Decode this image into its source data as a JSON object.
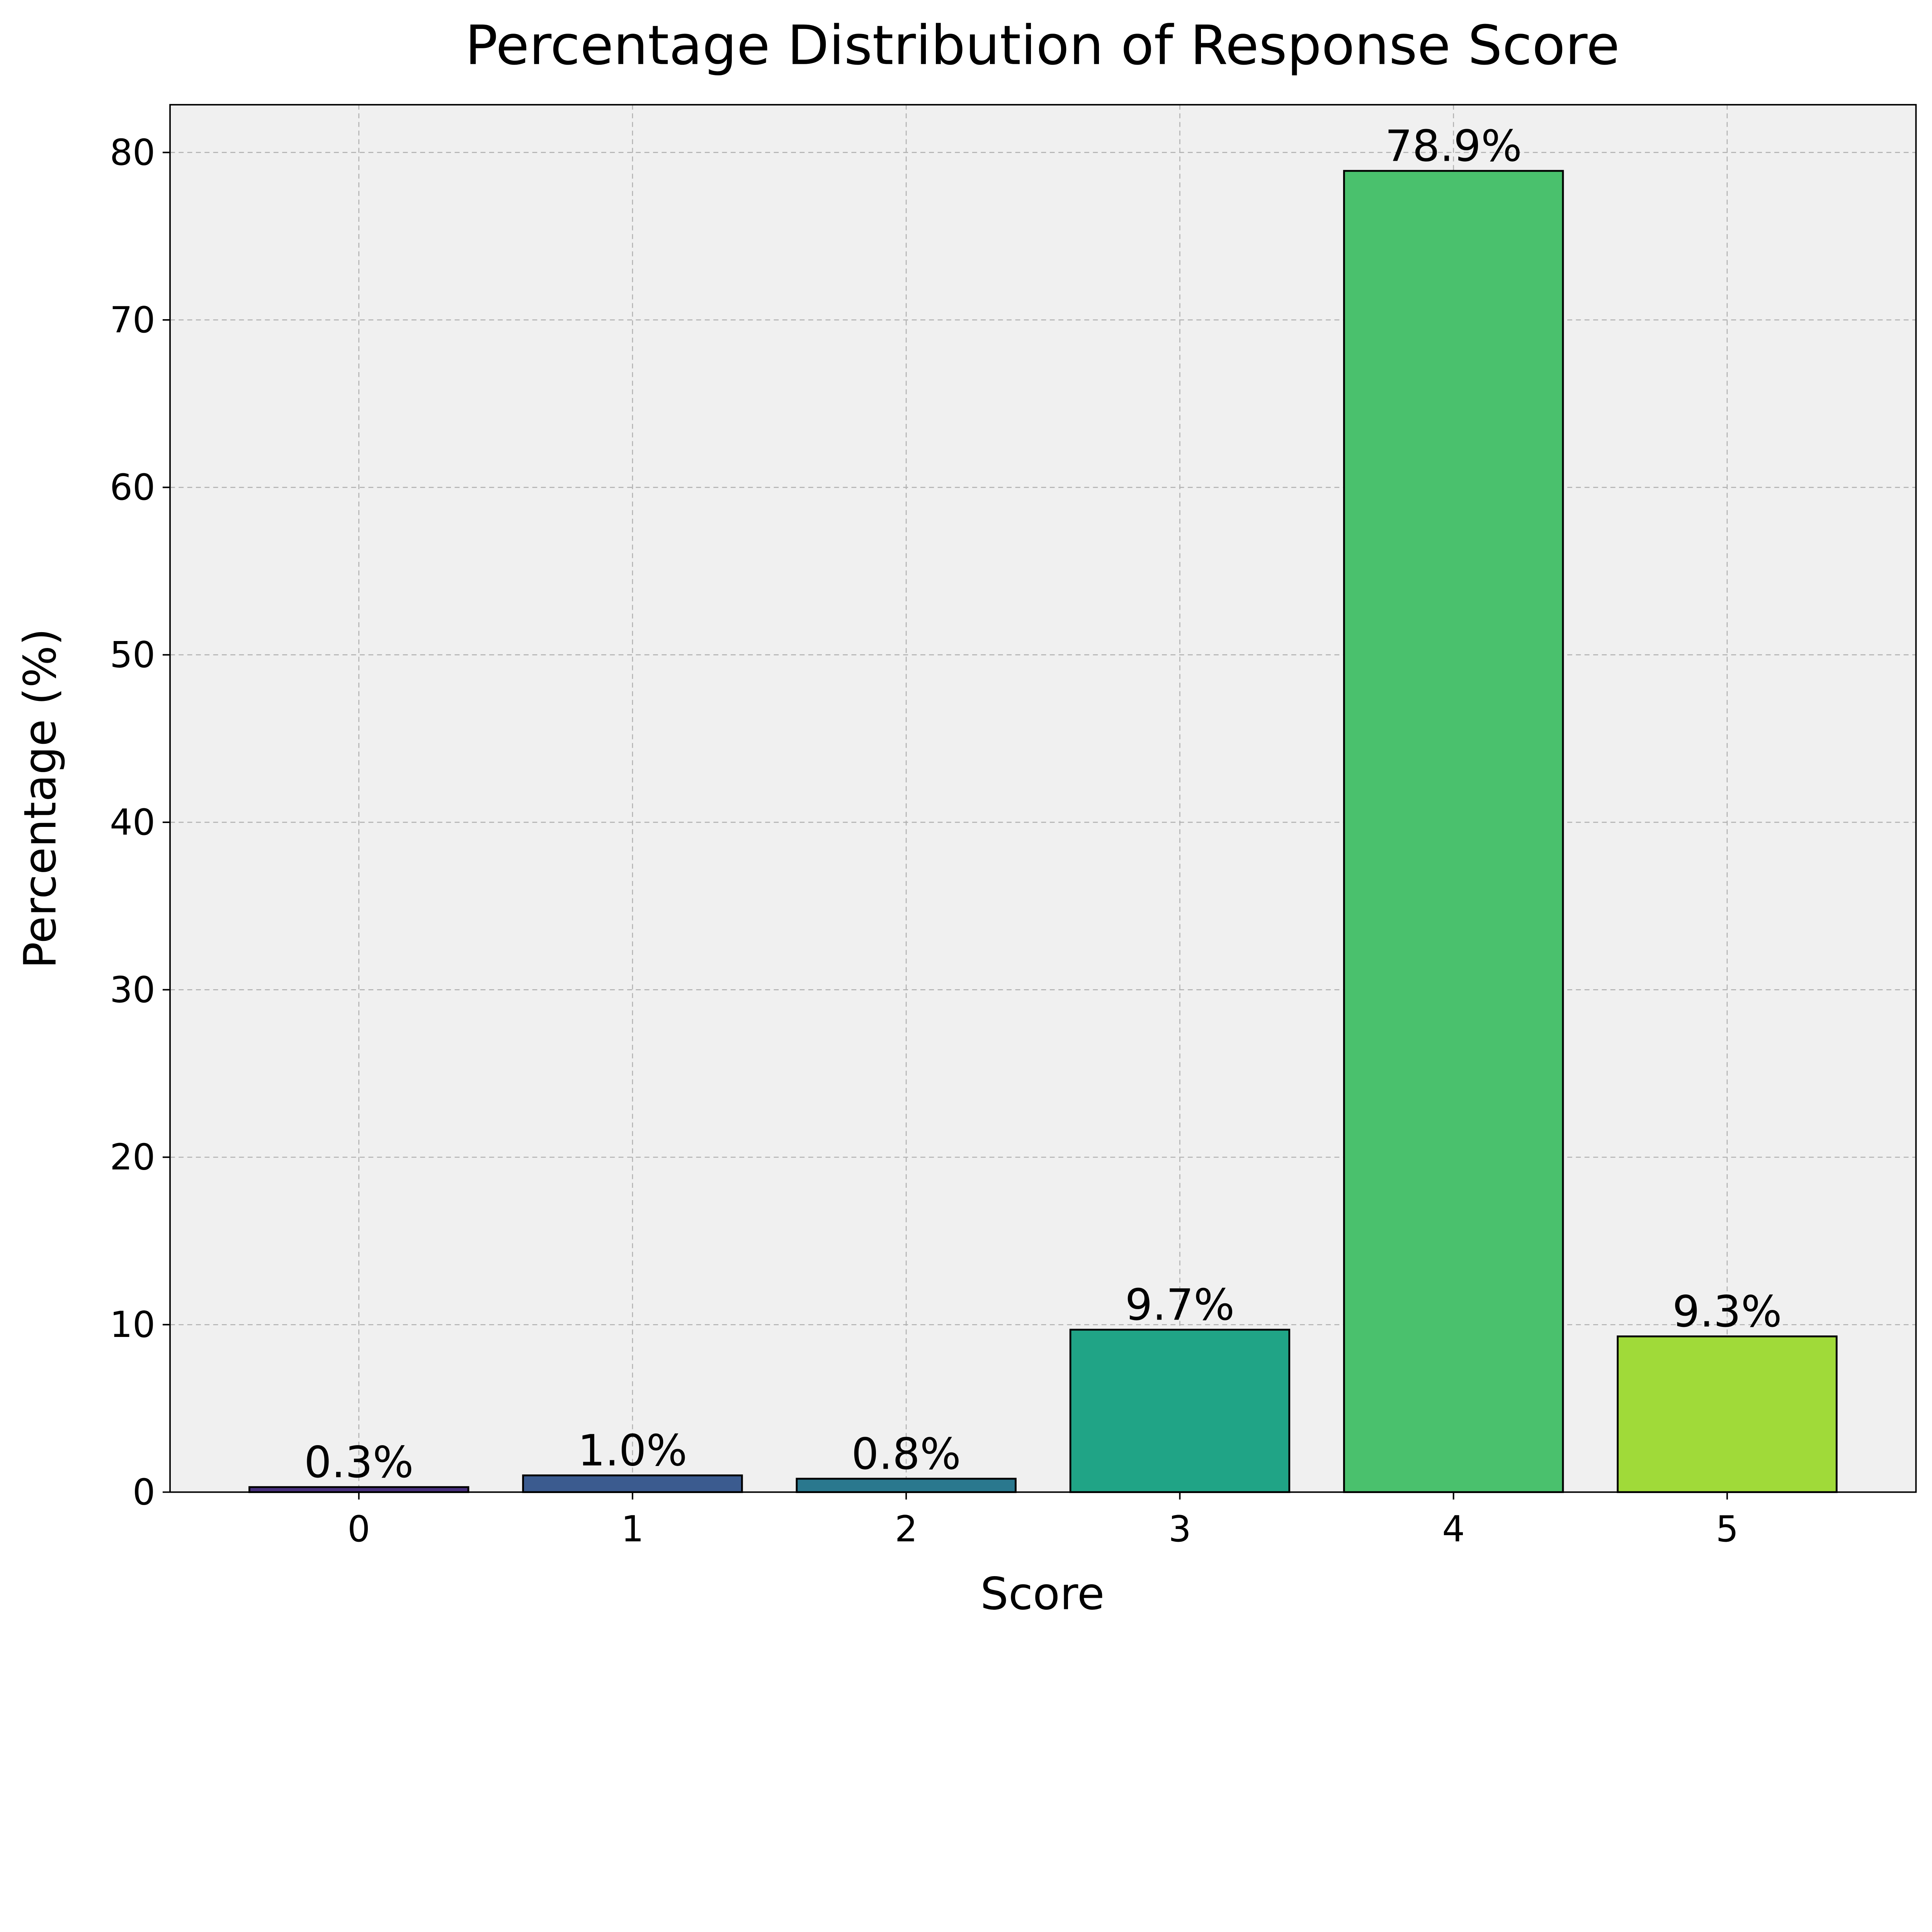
{
  "chart_data": {
    "type": "bar",
    "title": "Percentage Distribution of Response Score",
    "xlabel": "Score",
    "ylabel": "Percentage (%)",
    "categories": [
      "0",
      "1",
      "2",
      "3",
      "4",
      "5"
    ],
    "values": [
      0.3,
      1.0,
      0.8,
      9.7,
      78.9,
      9.3
    ],
    "data_labels": [
      "0.3%",
      "1.0%",
      "0.8%",
      "9.7%",
      "78.9%",
      "9.3%"
    ],
    "colors": [
      "#472f7d",
      "#3b5b8f",
      "#2a788e",
      "#20a486",
      "#4ac16d",
      "#a0da39"
    ],
    "ylim": [
      0,
      82.85
    ],
    "yticks": [
      0,
      10,
      20,
      30,
      40,
      50,
      60,
      70,
      80
    ],
    "grid": true,
    "background": "#f0f0f0"
  }
}
